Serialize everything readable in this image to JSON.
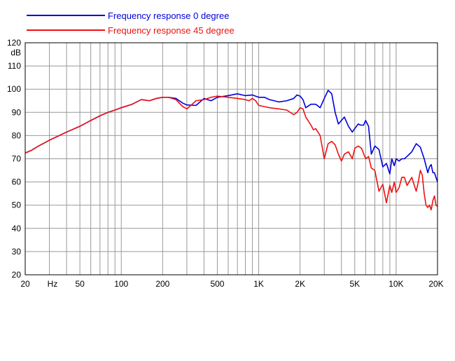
{
  "chart_data": {
    "type": "line",
    "title": "",
    "xlabel": "Hz",
    "ylabel": "dB",
    "x_scale": "log",
    "xlim": [
      20,
      20000
    ],
    "ylim": [
      20,
      120
    ],
    "grid": true,
    "legend_position": "top-left",
    "x_tick_values": [
      20,
      50,
      100,
      200,
      500,
      1000,
      2000,
      5000,
      10000,
      20000
    ],
    "x_tick_labels": [
      "20",
      "50",
      "100",
      "200",
      "500",
      "1K",
      "2K",
      "5K",
      "10K",
      "20K"
    ],
    "y_tick_values": [
      20,
      30,
      40,
      50,
      60,
      70,
      80,
      90,
      100,
      110,
      120
    ],
    "y_tick_labels": [
      "20",
      "30",
      "40",
      "50",
      "60",
      "70",
      "80",
      "90",
      "100",
      "110",
      "120"
    ],
    "series": [
      {
        "name": "Frequency response 0 degree",
        "color": "#0000dd",
        "x": [
          20,
          22,
          25,
          30,
          40,
          50,
          60,
          70,
          80,
          90,
          100,
          120,
          140,
          160,
          180,
          200,
          220,
          250,
          280,
          300,
          350,
          400,
          450,
          500,
          600,
          700,
          800,
          900,
          1000,
          1100,
          1200,
          1400,
          1600,
          1800,
          1900,
          2000,
          2100,
          2200,
          2400,
          2600,
          2800,
          3000,
          3200,
          3400,
          3600,
          3800,
          4000,
          4200,
          4500,
          4800,
          5000,
          5300,
          5500,
          5800,
          6000,
          6300,
          6600,
          7000,
          7500,
          8000,
          8500,
          9000,
          9300,
          9700,
          10000,
          10500,
          11000,
          11500,
          12000,
          12500,
          13000,
          14000,
          15000,
          16000,
          17000,
          17500,
          18000,
          18500,
          19000,
          20000
        ],
        "values": [
          72.5,
          73.5,
          75.5,
          78,
          81.5,
          84,
          86.5,
          88.5,
          90,
          91,
          92,
          93.5,
          95.5,
          95,
          96,
          96.5,
          96.5,
          96,
          94,
          93.2,
          93,
          96,
          95,
          96.5,
          97.2,
          98,
          97.2,
          97.5,
          96.5,
          96.5,
          95.5,
          94.5,
          95,
          96,
          97.5,
          97,
          95.5,
          92,
          93.5,
          93.5,
          92,
          96,
          99.5,
          98,
          90,
          85,
          86.5,
          88,
          84,
          81.5,
          83,
          85,
          84.5,
          84.5,
          86.5,
          84,
          72,
          75.5,
          74,
          66.5,
          68,
          63.5,
          70,
          67,
          70,
          69,
          70,
          70,
          71,
          72,
          73,
          76.5,
          75,
          70,
          64,
          66.5,
          67.5,
          64,
          64,
          60
        ]
      },
      {
        "name": "Frequency response 45 degree",
        "color": "#ee1111",
        "x": [
          20,
          22,
          25,
          30,
          40,
          50,
          60,
          70,
          80,
          90,
          100,
          120,
          140,
          160,
          180,
          200,
          220,
          250,
          280,
          300,
          350,
          400,
          450,
          500,
          600,
          700,
          800,
          850,
          900,
          950,
          1000,
          1200,
          1400,
          1600,
          1800,
          1900,
          2000,
          2100,
          2200,
          2400,
          2500,
          2600,
          2800,
          3000,
          3200,
          3400,
          3600,
          3800,
          4000,
          4200,
          4500,
          4800,
          5000,
          5300,
          5600,
          6000,
          6300,
          6600,
          7000,
          7500,
          8000,
          8500,
          9000,
          9300,
          9700,
          10000,
          10500,
          11000,
          11500,
          12000,
          13000,
          14000,
          14500,
          15000,
          15500,
          16000,
          16500,
          17000,
          17500,
          18000,
          18500,
          19000,
          19500,
          20000
        ],
        "values": [
          72.5,
          73.5,
          75.5,
          78,
          81.5,
          84,
          86.5,
          88.5,
          90,
          91,
          92,
          93.5,
          95.5,
          95,
          96,
          96.5,
          96.5,
          95.5,
          92.5,
          91.5,
          95,
          95.5,
          96.5,
          97,
          96.5,
          96,
          95.5,
          95,
          96,
          95,
          93,
          92,
          91.5,
          91,
          89,
          90,
          92,
          91.5,
          88,
          84.5,
          82.5,
          83,
          80,
          70,
          76.5,
          77.5,
          76,
          72,
          69,
          72,
          73,
          70,
          74.5,
          75.5,
          74.5,
          70,
          71,
          66,
          65,
          56,
          59,
          51,
          58.5,
          55.5,
          60,
          55.5,
          57.5,
          62,
          62,
          58.5,
          62,
          56,
          60,
          65,
          63,
          55,
          50,
          49,
          50,
          48,
          52,
          54,
          50,
          49.5
        ]
      }
    ]
  }
}
